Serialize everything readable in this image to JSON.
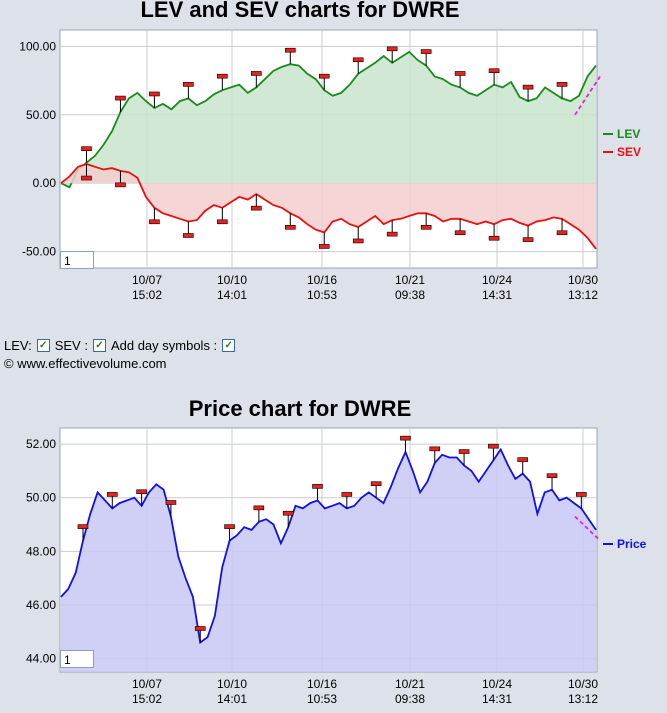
{
  "chart_data": [
    {
      "type": "line",
      "title": "LEV and SEV charts for DWRE",
      "x_tick_labels": [
        {
          "date": "10/07",
          "time": "15:02"
        },
        {
          "date": "10/10",
          "time": "14:01"
        },
        {
          "date": "10/16",
          "time": "10:53"
        },
        {
          "date": "10/21",
          "time": "09:38"
        },
        {
          "date": "10/24",
          "time": "14:31"
        },
        {
          "date": "10/30",
          "time": "13:12"
        }
      ],
      "y_ticks": [
        "100.00",
        "50.00",
        "0.00",
        "-50.00"
      ],
      "ylim": [
        -62,
        112
      ],
      "grid": true,
      "legend_position": "right",
      "series": [
        {
          "name": "LEV",
          "color": "#1a8a1a",
          "fill": "#c8e4cc",
          "values": [
            0,
            -3,
            10,
            15,
            20,
            28,
            38,
            52,
            62,
            66,
            60,
            55,
            58,
            54,
            60,
            62,
            57,
            60,
            65,
            68,
            70,
            72,
            66,
            70,
            76,
            82,
            85,
            87,
            86,
            80,
            76,
            68,
            64,
            66,
            72,
            80,
            84,
            88,
            93,
            88,
            92,
            96,
            90,
            86,
            78,
            76,
            72,
            70,
            66,
            64,
            68,
            72,
            70,
            74,
            63,
            60,
            62,
            70,
            66,
            62,
            60,
            64,
            78,
            86
          ]
        },
        {
          "name": "SEV",
          "color": "#e81010",
          "fill": "#f3cece",
          "values": [
            0,
            5,
            12,
            14,
            12,
            10,
            11,
            9,
            8,
            4,
            -10,
            -18,
            -22,
            -24,
            -26,
            -28,
            -27,
            -20,
            -16,
            -18,
            -14,
            -10,
            -12,
            -8,
            -12,
            -16,
            -18,
            -22,
            -25,
            -30,
            -34,
            -36,
            -28,
            -26,
            -30,
            -32,
            -28,
            -24,
            -30,
            -27,
            -26,
            -24,
            -22,
            -22,
            -24,
            -28,
            -26,
            -26,
            -28,
            -30,
            -28,
            -30,
            -27,
            -26,
            -29,
            -31,
            -28,
            -27,
            -25,
            -26,
            -30,
            -34,
            -40,
            -48
          ]
        }
      ],
      "trend": {
        "color": "#e820e0",
        "from": 50,
        "to": 78
      }
    },
    {
      "type": "area",
      "title": "Price chart for DWRE",
      "x_tick_labels": [
        {
          "date": "10/07",
          "time": "15:02"
        },
        {
          "date": "10/10",
          "time": "14:01"
        },
        {
          "date": "10/16",
          "time": "10:53"
        },
        {
          "date": "10/21",
          "time": "09:38"
        },
        {
          "date": "10/24",
          "time": "14:31"
        },
        {
          "date": "10/30",
          "time": "13:12"
        }
      ],
      "y_ticks": [
        "52.00",
        "50.00",
        "48.00",
        "46.00",
        "44.00"
      ],
      "ylim": [
        43.5,
        52.6
      ],
      "grid": true,
      "legend_position": "right",
      "series": [
        {
          "name": "Price",
          "color": "#1010e8",
          "fill": "#c8c8f4",
          "values": [
            46.3,
            46.6,
            47.2,
            48.4,
            49.4,
            50.2,
            49.9,
            49.6,
            49.8,
            49.9,
            50.0,
            49.7,
            50.2,
            50.5,
            50.3,
            49.3,
            47.8,
            47.0,
            46.3,
            44.6,
            44.8,
            45.6,
            47.4,
            48.4,
            48.6,
            48.9,
            48.8,
            49.1,
            49.2,
            49.0,
            48.3,
            48.9,
            49.7,
            49.6,
            49.8,
            49.9,
            49.6,
            49.7,
            49.8,
            49.6,
            49.7,
            50.0,
            50.2,
            50.0,
            49.8,
            50.4,
            51.1,
            51.7,
            51.0,
            50.2,
            50.6,
            51.3,
            51.6,
            51.5,
            51.5,
            51.2,
            51.0,
            50.6,
            51.0,
            51.4,
            51.8,
            51.2,
            50.7,
            50.9,
            50.6,
            49.4,
            50.2,
            50.3,
            49.9,
            50.0,
            49.8,
            49.6,
            49.2,
            48.8
          ]
        }
      ],
      "trend": {
        "color": "#e820e0",
        "from": 49.3,
        "to": 48.4
      }
    }
  ],
  "zoom_value": "1",
  "controls": {
    "lev_label": "LEV:",
    "sev_label": "SEV :",
    "day_label": "Add day symbols :",
    "checkmark": "✓"
  },
  "copyright": "© www.effectivevolume.com"
}
